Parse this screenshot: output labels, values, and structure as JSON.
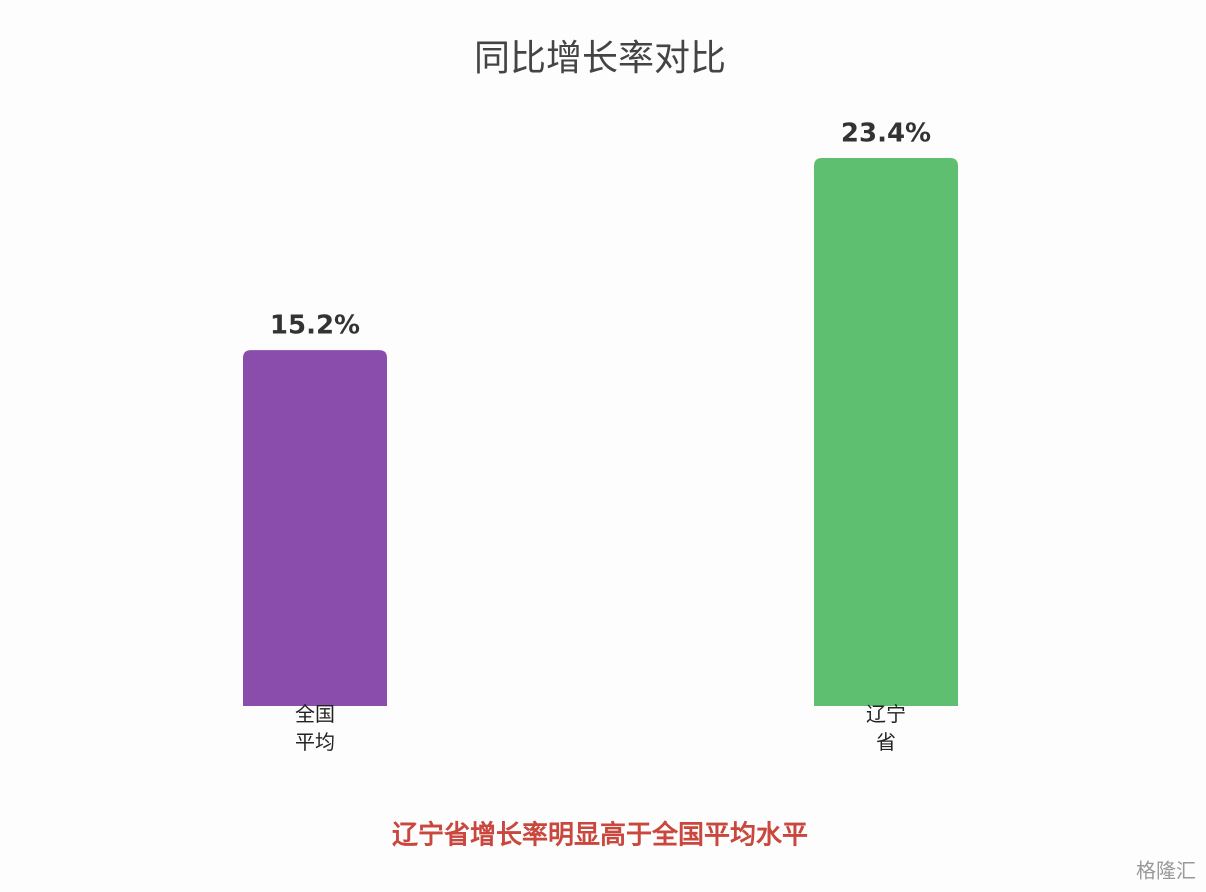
{
  "chart_data": {
    "type": "bar",
    "title": "同比增长率对比",
    "categories": [
      "全国平均",
      "辽宁省"
    ],
    "series": [
      {
        "name": "同比增长率",
        "values": [
          15.2,
          23.4
        ],
        "value_labels": [
          "15.2%",
          "23.4%"
        ],
        "colors": [
          "#8a4dab",
          "#5fbf70"
        ]
      }
    ],
    "ylim": [
      0,
      24
    ],
    "annotation": "辽宁省增长率明显高于全国平均水平",
    "watermark": "格隆汇"
  }
}
